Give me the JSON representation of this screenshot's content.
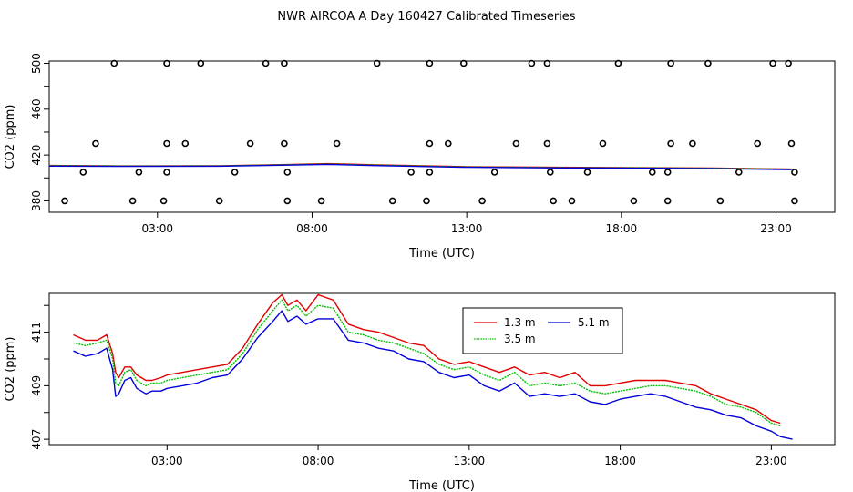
{
  "chart_data": [
    {
      "type": "scatter+line",
      "title": "NWR AIRCOA A  Day 160427  Calibrated Timeseries",
      "xlabel": "Time (UTC)",
      "ylabel": "CO2 (ppm)",
      "xlim": [
        -0.5,
        24.9
      ],
      "ylim": [
        370,
        502
      ],
      "xticks": [
        3,
        8,
        13,
        18,
        23
      ],
      "xtick_labels": [
        "03:00",
        "08:00",
        "13:00",
        "18:00",
        "23:00"
      ],
      "yticks": [
        380,
        420,
        460,
        500
      ],
      "ytick_labels": [
        "380",
        "420",
        "460",
        "500"
      ],
      "yminor_ticks": [
        400,
        440,
        480
      ],
      "points": [
        {
          "x": 1.6,
          "y": 500
        },
        {
          "x": 3.3,
          "y": 500
        },
        {
          "x": 4.4,
          "y": 500
        },
        {
          "x": 6.5,
          "y": 500
        },
        {
          "x": 7.1,
          "y": 500
        },
        {
          "x": 10.1,
          "y": 500
        },
        {
          "x": 11.8,
          "y": 500
        },
        {
          "x": 12.9,
          "y": 500
        },
        {
          "x": 15.1,
          "y": 500
        },
        {
          "x": 15.6,
          "y": 500
        },
        {
          "x": 17.9,
          "y": 500
        },
        {
          "x": 19.6,
          "y": 500
        },
        {
          "x": 20.8,
          "y": 500
        },
        {
          "x": 22.9,
          "y": 500
        },
        {
          "x": 23.4,
          "y": 500
        },
        {
          "x": 1.0,
          "y": 430
        },
        {
          "x": 3.3,
          "y": 430
        },
        {
          "x": 3.9,
          "y": 430
        },
        {
          "x": 6.0,
          "y": 430
        },
        {
          "x": 7.1,
          "y": 430
        },
        {
          "x": 8.8,
          "y": 430
        },
        {
          "x": 11.8,
          "y": 430
        },
        {
          "x": 12.4,
          "y": 430
        },
        {
          "x": 14.6,
          "y": 430
        },
        {
          "x": 15.6,
          "y": 430
        },
        {
          "x": 17.4,
          "y": 430
        },
        {
          "x": 19.6,
          "y": 430
        },
        {
          "x": 20.3,
          "y": 430
        },
        {
          "x": 22.4,
          "y": 430
        },
        {
          "x": 23.5,
          "y": 430
        },
        {
          "x": 0.6,
          "y": 405
        },
        {
          "x": 2.4,
          "y": 405
        },
        {
          "x": 3.3,
          "y": 405
        },
        {
          "x": 5.5,
          "y": 405
        },
        {
          "x": 7.2,
          "y": 405
        },
        {
          "x": 11.2,
          "y": 405
        },
        {
          "x": 11.8,
          "y": 405
        },
        {
          "x": 13.9,
          "y": 405
        },
        {
          "x": 15.7,
          "y": 405
        },
        {
          "x": 16.9,
          "y": 405
        },
        {
          "x": 19.0,
          "y": 405
        },
        {
          "x": 19.5,
          "y": 405
        },
        {
          "x": 21.8,
          "y": 405
        },
        {
          "x": 23.6,
          "y": 405
        },
        {
          "x": 0.0,
          "y": 380
        },
        {
          "x": 2.2,
          "y": 380
        },
        {
          "x": 3.2,
          "y": 380
        },
        {
          "x": 5.0,
          "y": 380
        },
        {
          "x": 7.2,
          "y": 380
        },
        {
          "x": 8.3,
          "y": 380
        },
        {
          "x": 10.6,
          "y": 380
        },
        {
          "x": 11.7,
          "y": 380
        },
        {
          "x": 13.5,
          "y": 380
        },
        {
          "x": 15.8,
          "y": 380
        },
        {
          "x": 16.4,
          "y": 380
        },
        {
          "x": 18.4,
          "y": 380
        },
        {
          "x": 19.5,
          "y": 380
        },
        {
          "x": 21.2,
          "y": 380
        },
        {
          "x": 23.6,
          "y": 380
        }
      ],
      "series": [
        {
          "name": "1.3 m",
          "color": "#e00000",
          "x": [
            -0.5,
            2,
            5,
            7,
            8.5,
            10,
            13,
            16,
            19,
            21,
            23.5
          ],
          "values": [
            410.9,
            410.5,
            410.6,
            411.6,
            412.5,
            411.5,
            409.8,
            409.3,
            408.9,
            408.6,
            407.7
          ]
        },
        {
          "name": "3.5 m",
          "color": "#00c000",
          "x": [
            -0.5,
            2,
            5,
            7,
            8.5,
            10,
            13,
            16,
            19,
            21,
            23.5
          ],
          "values": [
            410.7,
            410.4,
            410.5,
            411.4,
            412.1,
            411.2,
            409.6,
            409.0,
            408.7,
            408.4,
            407.6
          ]
        },
        {
          "name": "5.1 m",
          "color": "#0000d8",
          "x": [
            -0.5,
            2,
            5,
            7,
            8.5,
            10,
            13,
            16,
            19,
            21,
            23.5
          ],
          "values": [
            410.3,
            410.1,
            410.2,
            411.1,
            411.8,
            410.8,
            409.3,
            408.7,
            408.4,
            408.1,
            407.2
          ]
        }
      ]
    },
    {
      "type": "line",
      "xlabel": "Time (UTC)",
      "ylabel": "CO2 (ppm)",
      "xlim": [
        -0.9,
        25.1
      ],
      "ylim": [
        406.8,
        412.45
      ],
      "xticks": [
        3,
        8,
        13,
        18,
        23
      ],
      "xtick_labels": [
        "03:00",
        "08:00",
        "13:00",
        "18:00",
        "23:00"
      ],
      "yticks": [
        407,
        409,
        411
      ],
      "ytick_labels": [
        "407",
        "409",
        "411"
      ],
      "yminor_ticks": [
        408,
        410,
        412
      ],
      "legend": {
        "position": "top-center",
        "entries": [
          "1.3 m",
          "3.5 m",
          "5.1 m"
        ]
      },
      "series": [
        {
          "name": "1.3 m",
          "color": "#e00000",
          "x": [
            -0.1,
            0.3,
            0.7,
            1.0,
            1.2,
            1.3,
            1.4,
            1.6,
            1.8,
            2.0,
            2.3,
            2.5,
            2.8,
            3.0,
            3.5,
            4.0,
            4.5,
            5.0,
            5.5,
            6.0,
            6.5,
            6.8,
            7.0,
            7.3,
            7.6,
            8.0,
            8.5,
            9.0,
            9.5,
            10.0,
            10.5,
            11.0,
            11.5,
            12.0,
            12.5,
            13.0,
            13.5,
            14.0,
            14.5,
            15.0,
            15.5,
            16.0,
            16.5,
            17.0,
            17.5,
            18.0,
            18.5,
            19.0,
            19.5,
            20.0,
            20.5,
            21.0,
            21.5,
            22.0,
            22.5,
            23.0,
            23.3
          ],
          "values": [
            410.9,
            410.7,
            410.7,
            410.9,
            410.2,
            409.5,
            409.3,
            409.7,
            409.7,
            409.4,
            409.2,
            409.2,
            409.3,
            409.4,
            409.5,
            409.6,
            409.7,
            409.8,
            410.4,
            411.3,
            412.1,
            412.4,
            412.0,
            412.2,
            411.8,
            412.4,
            412.2,
            411.3,
            411.1,
            411.0,
            410.8,
            410.6,
            410.5,
            410.0,
            409.8,
            409.9,
            409.7,
            409.5,
            409.7,
            409.4,
            409.5,
            409.3,
            409.5,
            409.0,
            409.0,
            409.1,
            409.2,
            409.2,
            409.2,
            409.1,
            409.0,
            408.7,
            408.5,
            408.3,
            408.1,
            407.7,
            407.6
          ]
        },
        {
          "name": "3.5 m",
          "color": "#00c000",
          "x": [
            -0.1,
            0.3,
            0.7,
            1.0,
            1.2,
            1.3,
            1.4,
            1.6,
            1.8,
            2.0,
            2.3,
            2.5,
            2.8,
            3.0,
            3.5,
            4.0,
            4.5,
            5.0,
            5.5,
            6.0,
            6.5,
            6.8,
            7.0,
            7.3,
            7.6,
            8.0,
            8.5,
            9.0,
            9.5,
            10.0,
            10.5,
            11.0,
            11.5,
            12.0,
            12.5,
            13.0,
            13.5,
            14.0,
            14.5,
            15.0,
            15.5,
            16.0,
            16.5,
            17.0,
            17.5,
            18.0,
            18.5,
            19.0,
            19.5,
            20.0,
            20.5,
            21.0,
            21.5,
            22.0,
            22.5,
            23.0,
            23.3
          ],
          "values": [
            410.6,
            410.5,
            410.6,
            410.7,
            410.0,
            409.1,
            409.0,
            409.5,
            409.6,
            409.2,
            409.0,
            409.1,
            409.1,
            409.2,
            409.3,
            409.4,
            409.5,
            409.6,
            410.2,
            411.1,
            411.8,
            412.2,
            411.8,
            412.0,
            411.6,
            412.0,
            411.9,
            411.0,
            410.9,
            410.7,
            410.6,
            410.4,
            410.2,
            409.8,
            409.6,
            409.7,
            409.4,
            409.2,
            409.5,
            409.0,
            409.1,
            409.0,
            409.1,
            408.8,
            408.7,
            408.8,
            408.9,
            409.0,
            409.0,
            408.9,
            408.8,
            408.6,
            408.3,
            408.2,
            408.0,
            407.6,
            407.5
          ]
        },
        {
          "name": "5.1 m",
          "color": "#0000d8",
          "x": [
            -0.1,
            0.3,
            0.7,
            1.0,
            1.2,
            1.3,
            1.4,
            1.6,
            1.8,
            2.0,
            2.3,
            2.5,
            2.8,
            3.0,
            3.5,
            4.0,
            4.5,
            5.0,
            5.5,
            6.0,
            6.5,
            6.8,
            7.0,
            7.3,
            7.6,
            8.0,
            8.5,
            9.0,
            9.5,
            10.0,
            10.5,
            11.0,
            11.5,
            12.0,
            12.5,
            13.0,
            13.5,
            14.0,
            14.5,
            15.0,
            15.5,
            16.0,
            16.5,
            17.0,
            17.5,
            18.0,
            18.5,
            19.0,
            19.5,
            20.0,
            20.5,
            21.0,
            21.5,
            22.0,
            22.5,
            23.0,
            23.3,
            23.7
          ],
          "values": [
            410.3,
            410.1,
            410.2,
            410.4,
            409.6,
            408.6,
            408.7,
            409.2,
            409.3,
            408.9,
            408.7,
            408.8,
            408.8,
            408.9,
            409.0,
            409.1,
            409.3,
            409.4,
            410.0,
            410.8,
            411.4,
            411.8,
            411.4,
            411.6,
            411.3,
            411.5,
            411.5,
            410.7,
            410.6,
            410.4,
            410.3,
            410.0,
            409.9,
            409.5,
            409.3,
            409.4,
            409.0,
            408.8,
            409.1,
            408.6,
            408.7,
            408.6,
            408.7,
            408.4,
            408.3,
            408.5,
            408.6,
            408.7,
            408.6,
            408.4,
            408.2,
            408.1,
            407.9,
            407.8,
            407.5,
            407.3,
            407.1,
            407.0
          ]
        }
      ]
    }
  ]
}
